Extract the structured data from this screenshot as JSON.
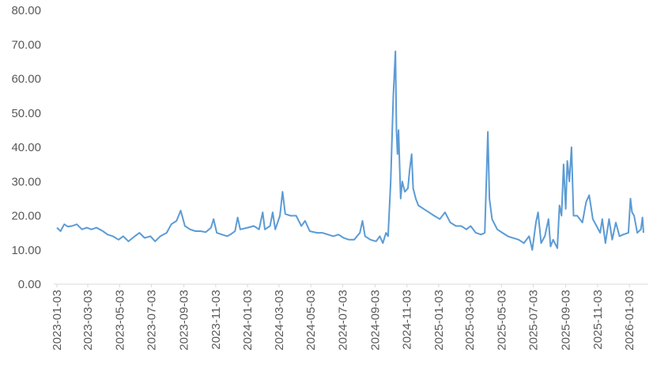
{
  "chart_data": {
    "type": "line",
    "color": "#5b9bd5",
    "grid": false,
    "x": [
      "2023-01-03",
      "2023-01-10",
      "2023-01-17",
      "2023-01-24",
      "2023-02-01",
      "2023-02-10",
      "2023-02-20",
      "2023-03-01",
      "2023-03-10",
      "2023-03-20",
      "2023-04-01",
      "2023-04-10",
      "2023-04-20",
      "2023-05-01",
      "2023-05-10",
      "2023-05-20",
      "2023-06-01",
      "2023-06-10",
      "2023-06-20",
      "2023-07-01",
      "2023-07-10",
      "2023-07-20",
      "2023-08-01",
      "2023-08-10",
      "2023-08-20",
      "2023-08-28",
      "2023-09-05",
      "2023-09-15",
      "2023-09-25",
      "2023-10-05",
      "2023-10-15",
      "2023-10-25",
      "2023-10-30",
      "2023-11-05",
      "2023-11-15",
      "2023-11-25",
      "2023-12-01",
      "2023-12-10",
      "2023-12-15",
      "2023-12-20",
      "2024-01-03",
      "2024-01-15",
      "2024-01-25",
      "2024-02-01",
      "2024-02-05",
      "2024-02-15",
      "2024-02-20",
      "2024-02-25",
      "2024-03-05",
      "2024-03-10",
      "2024-03-15",
      "2024-03-25",
      "2024-04-05",
      "2024-04-15",
      "2024-04-22",
      "2024-05-01",
      "2024-05-15",
      "2024-05-25",
      "2024-06-05",
      "2024-06-15",
      "2024-06-25",
      "2024-07-05",
      "2024-07-15",
      "2024-07-25",
      "2024-08-05",
      "2024-08-10",
      "2024-08-15",
      "2024-08-25",
      "2024-09-05",
      "2024-09-12",
      "2024-09-18",
      "2024-09-24",
      "2024-09-28",
      "2024-10-03",
      "2024-10-08",
      "2024-10-12",
      "2024-10-14",
      "2024-10-16",
      "2024-10-18",
      "2024-10-22",
      "2024-10-25",
      "2024-10-30",
      "2024-11-05",
      "2024-11-08",
      "2024-11-12",
      "2024-11-15",
      "2024-11-20",
      "2024-11-25",
      "2024-12-05",
      "2024-12-15",
      "2024-12-25",
      "2025-01-05",
      "2025-01-15",
      "2025-01-25",
      "2025-02-05",
      "2025-02-15",
      "2025-02-25",
      "2025-03-05",
      "2025-03-15",
      "2025-03-25",
      "2025-04-01",
      "2025-04-07",
      "2025-04-10",
      "2025-04-15",
      "2025-04-25",
      "2025-05-05",
      "2025-05-15",
      "2025-05-25",
      "2025-06-05",
      "2025-06-15",
      "2025-06-25",
      "2025-07-01",
      "2025-07-08",
      "2025-07-12",
      "2025-07-18",
      "2025-07-25",
      "2025-08-01",
      "2025-08-05",
      "2025-08-10",
      "2025-08-18",
      "2025-08-22",
      "2025-08-26",
      "2025-08-30",
      "2025-09-03",
      "2025-09-06",
      "2025-09-10",
      "2025-09-14",
      "2025-09-18",
      "2025-09-25",
      "2025-10-05",
      "2025-10-12",
      "2025-10-18",
      "2025-10-25",
      "2025-11-01",
      "2025-11-08",
      "2025-11-12",
      "2025-11-18",
      "2025-11-25",
      "2025-12-01",
      "2025-12-08",
      "2025-12-15",
      "2025-12-22",
      "2026-01-01",
      "2026-01-05",
      "2026-01-08",
      "2026-01-12",
      "2026-01-18",
      "2026-01-25",
      "2026-01-28",
      "2026-01-30"
    ],
    "values": [
      16.5,
      15.5,
      17.5,
      16.8,
      17,
      17.5,
      16,
      16.5,
      16,
      16.5,
      15.5,
      14.5,
      14,
      13,
      14,
      12.5,
      14,
      15,
      13.5,
      14,
      12.5,
      14,
      15,
      17.5,
      18.5,
      21.5,
      17,
      16,
      15.5,
      15.5,
      15.2,
      16.5,
      19,
      15,
      14.5,
      14,
      14.5,
      15.5,
      19.5,
      16,
      16.5,
      17,
      16,
      21,
      16,
      17,
      21,
      16,
      20,
      27,
      20.5,
      20,
      20,
      17,
      18.5,
      15.5,
      15,
      15,
      14.5,
      14,
      14.5,
      13.5,
      13,
      13,
      15,
      18.5,
      14,
      13,
      12.5,
      14,
      12,
      15,
      14,
      30,
      55,
      68,
      45,
      38,
      45,
      25,
      30,
      27,
      28,
      33,
      38,
      28,
      25,
      23,
      22,
      21,
      20,
      19,
      21,
      18,
      17,
      17,
      16,
      17,
      15,
      14.5,
      15,
      44.5,
      25,
      19,
      16,
      15,
      14,
      13.5,
      13,
      12,
      14,
      10,
      18,
      21,
      12,
      14,
      19,
      11,
      13,
      10.5,
      23,
      20,
      35,
      22,
      36,
      30,
      40,
      20,
      20,
      18,
      24,
      26,
      19,
      17,
      15,
      19,
      12,
      19,
      13,
      18,
      14,
      14.5,
      15,
      25,
      21,
      20,
      15,
      16,
      19.5,
      15
    ],
    "xlim": [
      "2023-01-03",
      "2026-02-05"
    ],
    "xticks": [
      "2023-01-03",
      "2023-03-03",
      "2023-05-03",
      "2023-07-03",
      "2023-09-03",
      "2023-11-03",
      "2024-01-03",
      "2024-03-03",
      "2024-05-03",
      "2024-07-03",
      "2024-09-03",
      "2024-11-03",
      "2025-01-03",
      "2025-03-03",
      "2025-05-03",
      "2025-07-03",
      "2025-09-03",
      "2025-11-03",
      "2026-01-03"
    ],
    "ylim": [
      0,
      80
    ],
    "yticks": [
      {
        "value": 0,
        "label": "0.00"
      },
      {
        "value": 10,
        "label": "10.00"
      },
      {
        "value": 20,
        "label": "20.00"
      },
      {
        "value": 30,
        "label": "30.00"
      },
      {
        "value": 40,
        "label": "40.00"
      },
      {
        "value": 50,
        "label": "50.00"
      },
      {
        "value": 60,
        "label": "60.00"
      },
      {
        "value": 70,
        "label": "70.00"
      },
      {
        "value": 80,
        "label": "80.00"
      }
    ]
  }
}
